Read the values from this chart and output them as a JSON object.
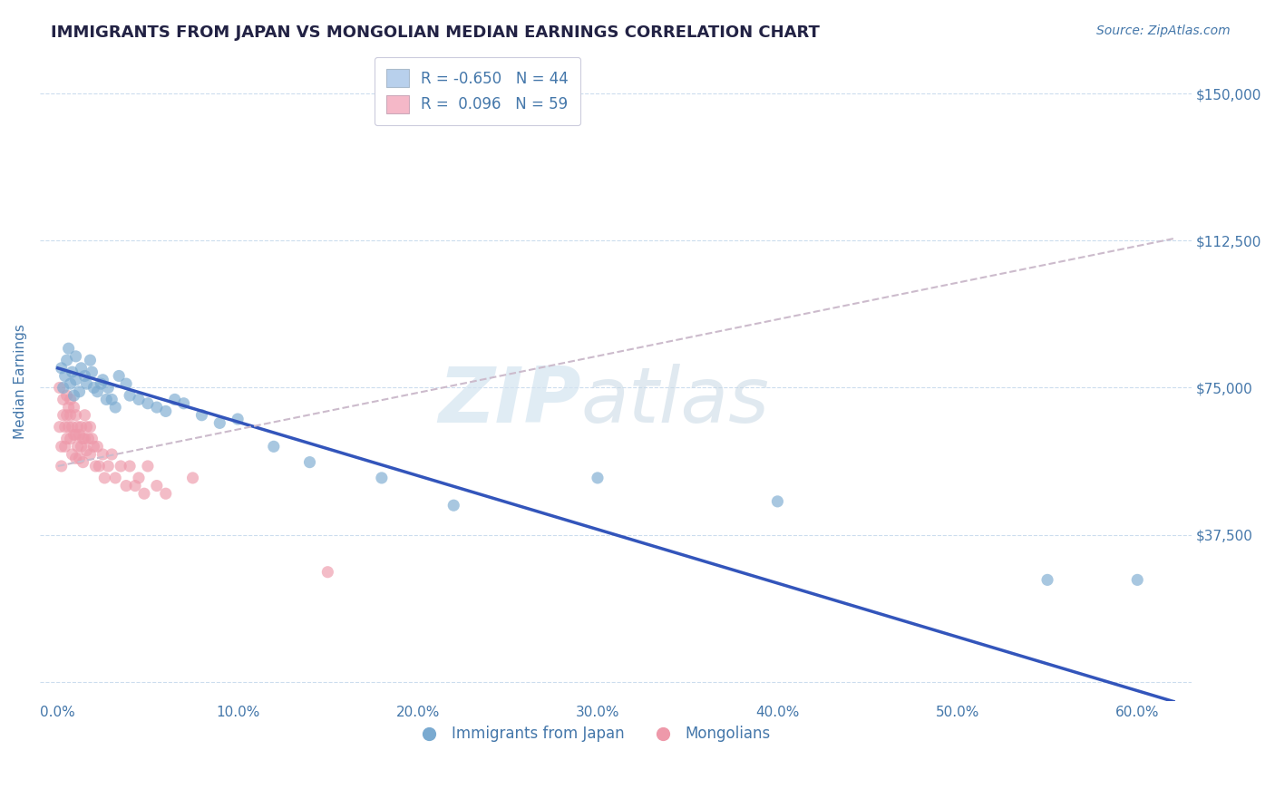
{
  "title": "IMMIGRANTS FROM JAPAN VS MONGOLIAN MEDIAN EARNINGS CORRELATION CHART",
  "source_text": "Source: ZipAtlas.com",
  "ylabel": "Median Earnings",
  "x_ticks": [
    0.0,
    0.1,
    0.2,
    0.3,
    0.4,
    0.5,
    0.6
  ],
  "x_tick_labels": [
    "0.0%",
    "10.0%",
    "20.0%",
    "30.0%",
    "40.0%",
    "50.0%",
    "60.0%"
  ],
  "y_ticks": [
    0,
    37500,
    75000,
    112500,
    150000
  ],
  "y_tick_labels": [
    "",
    "$37,500",
    "$75,000",
    "$112,500",
    "$150,000"
  ],
  "xlim": [
    -0.01,
    0.63
  ],
  "ylim": [
    -5000,
    158000
  ],
  "watermark_zip": "ZIP",
  "watermark_atlas": "atlas",
  "legend_label_1": "R = -0.650   N = 44",
  "legend_label_2": "R =  0.096   N = 59",
  "legend_color_1": "#b8d0ec",
  "legend_color_2": "#f5b8c8",
  "japan_color": "#7aaad0",
  "mongolia_color": "#ee99aa",
  "japan_line_color": "#3355bb",
  "mongolia_line_color": "#cc4466",
  "mongolia_line_dash_color": "#ccbbcc",
  "title_color": "#222244",
  "axis_label_color": "#4477aa",
  "tick_label_color": "#4477aa",
  "background_color": "#ffffff",
  "grid_color": "#ccddee",
  "bottom_legend_label_1": "Immigrants from Japan",
  "bottom_legend_label_2": "Mongolians",
  "japan_scatter_x": [
    0.002,
    0.003,
    0.004,
    0.005,
    0.006,
    0.007,
    0.008,
    0.009,
    0.01,
    0.01,
    0.012,
    0.013,
    0.015,
    0.016,
    0.018,
    0.019,
    0.02,
    0.022,
    0.024,
    0.025,
    0.027,
    0.028,
    0.03,
    0.032,
    0.034,
    0.038,
    0.04,
    0.045,
    0.05,
    0.055,
    0.06,
    0.065,
    0.07,
    0.08,
    0.09,
    0.1,
    0.12,
    0.14,
    0.18,
    0.22,
    0.3,
    0.4,
    0.55,
    0.6
  ],
  "japan_scatter_y": [
    80000,
    75000,
    78000,
    82000,
    85000,
    76000,
    79000,
    73000,
    83000,
    77000,
    74000,
    80000,
    78000,
    76000,
    82000,
    79000,
    75000,
    74000,
    76000,
    77000,
    72000,
    75000,
    72000,
    70000,
    78000,
    76000,
    73000,
    72000,
    71000,
    70000,
    69000,
    72000,
    71000,
    68000,
    66000,
    67000,
    60000,
    56000,
    52000,
    45000,
    52000,
    46000,
    26000,
    26000
  ],
  "mongolia_scatter_x": [
    0.001,
    0.001,
    0.002,
    0.002,
    0.003,
    0.003,
    0.004,
    0.004,
    0.005,
    0.005,
    0.005,
    0.006,
    0.006,
    0.007,
    0.007,
    0.007,
    0.008,
    0.008,
    0.009,
    0.009,
    0.01,
    0.01,
    0.01,
    0.011,
    0.011,
    0.012,
    0.012,
    0.013,
    0.013,
    0.014,
    0.014,
    0.015,
    0.015,
    0.016,
    0.016,
    0.017,
    0.018,
    0.018,
    0.019,
    0.02,
    0.021,
    0.022,
    0.023,
    0.025,
    0.026,
    0.028,
    0.03,
    0.032,
    0.035,
    0.038,
    0.04,
    0.043,
    0.045,
    0.048,
    0.05,
    0.055,
    0.06,
    0.075,
    0.15
  ],
  "mongolia_scatter_y": [
    75000,
    65000,
    60000,
    55000,
    72000,
    68000,
    65000,
    60000,
    73000,
    68000,
    62000,
    70000,
    65000,
    72000,
    68000,
    62000,
    65000,
    58000,
    70000,
    63000,
    68000,
    63000,
    57000,
    65000,
    60000,
    63000,
    57000,
    65000,
    60000,
    62000,
    56000,
    68000,
    62000,
    65000,
    59000,
    62000,
    65000,
    58000,
    62000,
    60000,
    55000,
    60000,
    55000,
    58000,
    52000,
    55000,
    58000,
    52000,
    55000,
    50000,
    55000,
    50000,
    52000,
    48000,
    55000,
    50000,
    48000,
    52000,
    28000
  ],
  "japan_line_x0": 0.0,
  "japan_line_y0": 80000,
  "japan_line_x1": 0.62,
  "japan_line_y1": -5000,
  "mongolia_line_x0": 0.0,
  "mongolia_line_y0": 55000,
  "mongolia_line_x1": 0.62,
  "mongolia_line_y1": 113000
}
